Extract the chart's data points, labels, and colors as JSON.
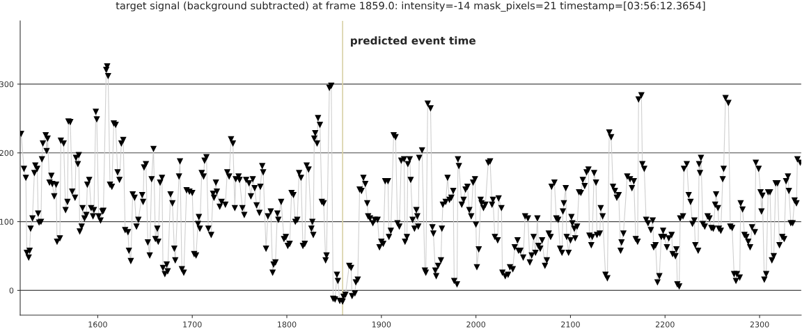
{
  "chart_data": {
    "type": "line",
    "title": "target signal (background subtracted) at frame 1859.0: intensity=-14 mask_pixels=21 timestamp=[03:56:12.3654]",
    "series": [
      {
        "color": "#000000",
        "x": [
          1519,
          1522,
          1524,
          1525,
          1527,
          1528,
          1529,
          1531,
          1533,
          1534,
          1536,
          1537,
          1538,
          1540,
          1541,
          1542,
          1545,
          1546,
          1547,
          1549,
          1551,
          1552,
          1554,
          1556,
          1557,
          1560,
          1561,
          1564,
          1566,
          1568,
          1569,
          1571,
          1573,
          1576,
          1577,
          1579,
          1580,
          1581,
          1583,
          1584,
          1586,
          1588,
          1589,
          1591,
          1593,
          1595,
          1596,
          1598,
          1599,
          1601,
          1603,
          1605,
          1606,
          1609,
          1610,
          1611,
          1613,
          1615,
          1617,
          1619,
          1621,
          1623,
          1625,
          1627,
          1629,
          1632,
          1633,
          1635,
          1637,
          1639,
          1641,
          1643,
          1647,
          1648,
          1649,
          1651,
          1653,
          1655,
          1657,
          1659,
          1661,
          1663,
          1664,
          1666,
          1668,
          1669,
          1671,
          1673,
          1674,
          1677,
          1679,
          1681,
          1682,
          1686,
          1687,
          1689,
          1691,
          1694,
          1697,
          1700,
          1702,
          1704,
          1706,
          1707,
          1708,
          1710,
          1712,
          1713,
          1715,
          1717,
          1720,
          1722,
          1723,
          1725,
          1726,
          1729,
          1731,
          1735,
          1737,
          1739,
          1741,
          1743,
          1745,
          1746,
          1749,
          1750,
          1753,
          1755,
          1757,
          1760,
          1762,
          1764,
          1766,
          1768,
          1771,
          1772,
          1774,
          1775,
          1778,
          1780,
          1783,
          1785,
          1786,
          1788,
          1790,
          1791,
          1794,
          1797,
          1799,
          1801,
          1803,
          1805,
          1807,
          1809,
          1811,
          1813,
          1815,
          1817,
          1819,
          1821,
          1823,
          1826,
          1827,
          1828,
          1829,
          1830,
          1832,
          1833,
          1835,
          1837,
          1839,
          1841,
          1842,
          1845,
          1847,
          1849,
          1851,
          1853,
          1854,
          1856,
          1859,
          1860,
          1862,
          1866,
          1868,
          1869,
          1872,
          1873,
          1875,
          1877,
          1879,
          1881,
          1883,
          1885,
          1886,
          1888,
          1891,
          1893,
          1896,
          1898,
          1900,
          1902,
          1904,
          1907,
          1908,
          1910,
          1913,
          1915,
          1917,
          1919,
          1921,
          1924,
          1925,
          1927,
          1928,
          1930,
          1931,
          1933,
          1935,
          1937,
          1938,
          1939,
          1940,
          1943,
          1946,
          1947,
          1949,
          1952,
          1954,
          1955,
          1957,
          1958,
          1960,
          1963,
          1964,
          1965,
          1968,
          1970,
          1972,
          1974,
          1976,
          1977,
          1980,
          1981,
          1982,
          1985,
          1987,
          1989,
          1991,
          1993,
          1995,
          1997,
          1999,
          2000,
          2001,
          2003,
          2005,
          2006,
          2008,
          2010,
          2013,
          2015,
          2017,
          2018,
          2020,
          2023,
          2024,
          2027,
          2028,
          2031,
          2034,
          2036,
          2039,
          2041,
          2044,
          2045,
          2047,
          2050,
          2052,
          2055,
          2057,
          2059,
          2061,
          2063,
          2065,
          2066,
          2068,
          2070,
          2073,
          2075,
          2077,
          2079,
          2080,
          2083,
          2085,
          2087,
          2089,
          2091,
          2092,
          2093,
          2095,
          2096,
          2098,
          2100,
          2101,
          2102,
          2104,
          2105,
          2107,
          2109,
          2111,
          2113,
          2115,
          2117,
          2119,
          2120,
          2122,
          2123,
          2125,
          2127,
          2128,
          2131,
          2132,
          2134,
          2137,
          2139,
          2141,
          2143,
          2145,
          2147,
          2149,
          2151,
          2153,
          2154,
          2156,
          2160,
          2163,
          2165,
          2167,
          2169,
          2171,
          2172,
          2175,
          2176,
          2178,
          2180,
          2182,
          2185,
          2187,
          2188,
          2190,
          2192,
          2194,
          2196,
          2198,
          2199,
          2202,
          2204,
          2207,
          2208,
          2211,
          2212,
          2213,
          2215,
          2216,
          2219,
          2220,
          2223,
          2225,
          2227,
          2229,
          2231,
          2232,
          2235,
          2236,
          2237,
          2238,
          2240,
          2242,
          2245,
          2247,
          2249,
          2251,
          2253,
          2254,
          2256,
          2257,
          2259,
          2261,
          2262,
          2264,
          2267,
          2269,
          2271,
          2273,
          2275,
          2276,
          2279,
          2280,
          2282,
          2284,
          2286,
          2288,
          2290,
          2292,
          2295,
          2296,
          2299,
          2301,
          2302,
          2303,
          2305,
          2307,
          2309,
          2311,
          2313,
          2315,
          2317,
          2319,
          2321,
          2324,
          2326,
          2328,
          2330,
          2331,
          2333,
          2335,
          2337,
          2339,
          2340,
          2343
        ],
        "values": [
          228,
          177,
          164,
          55,
          48,
          58,
          90,
          105,
          171,
          182,
          177,
          112,
          99,
          100,
          191,
          214,
          226,
          203,
          221,
          157,
          167,
          155,
          137,
          154,
          71,
          76,
          218,
          214,
          117,
          129,
          246,
          245,
          144,
          135,
          193,
          184,
          197,
          86,
          93,
          120,
          105,
          110,
          154,
          161,
          120,
          108,
          117,
          260,
          249,
          108,
          102,
          115,
          116,
          321,
          326,
          312,
          154,
          151,
          243,
          241,
          172,
          161,
          214,
          219,
          88,
          85,
          58,
          43,
          140,
          135,
          93,
          103,
          139,
          129,
          179,
          184,
          70,
          51,
          162,
          206,
          75,
          90,
          71,
          157,
          164,
          33,
          24,
          38,
          28,
          140,
          127,
          61,
          44,
          166,
          188,
          31,
          26,
          146,
          144,
          142,
          53,
          51,
          97,
          107,
          90,
          171,
          166,
          189,
          194,
          90,
          81,
          141,
          135,
          157,
          144,
          122,
          129,
          125,
          172,
          166,
          220,
          214,
          120,
          162,
          166,
          161,
          120,
          110,
          161,
          156,
          137,
          162,
          149,
          124,
          113,
          151,
          181,
          172,
          61,
          108,
          115,
          26,
          38,
          41,
          112,
          103,
          129,
          75,
          78,
          65,
          68,
          142,
          139,
          100,
          103,
          171,
          164,
          65,
          68,
          182,
          176,
          90,
          100,
          81,
          221,
          229,
          214,
          251,
          241,
          129,
          127,
          44,
          51,
          295,
          298,
          -12,
          -13,
          23,
          14,
          -15,
          -16,
          -9,
          -6,
          36,
          33,
          -8,
          -4,
          12,
          16,
          147,
          145,
          164,
          155,
          127,
          108,
          105,
          98,
          103,
          103,
          63,
          71,
          68,
          159,
          159,
          78,
          87,
          226,
          223,
          98,
          93,
          189,
          191,
          71,
          78,
          184,
          191,
          161,
          103,
          90,
          117,
          108,
          93,
          193,
          204,
          29,
          26,
          272,
          265,
          92,
          83,
          29,
          21,
          36,
          44,
          90,
          125,
          129,
          164,
          132,
          135,
          145,
          14,
          9,
          191,
          181,
          125,
          132,
          147,
          151,
          117,
          108,
          157,
          162,
          96,
          34,
          60,
          132,
          127,
          120,
          125,
          186,
          188,
          125,
          132,
          78,
          73,
          134,
          120,
          26,
          21,
          23,
          34,
          31,
          63,
          73,
          58,
          58,
          48,
          108,
          105,
          41,
          51,
          78,
          55,
          105,
          65,
          61,
          73,
          36,
          44,
          83,
          78,
          151,
          157,
          105,
          103,
          61,
          55,
          115,
          127,
          149,
          78,
          55,
          73,
          107,
          98,
          90,
          76,
          93,
          143,
          142,
          161,
          152,
          172,
          176,
          80,
          66,
          78,
          171,
          157,
          81,
          83,
          120,
          108,
          23,
          18,
          230,
          223,
          151,
          145,
          135,
          139,
          58,
          70,
          83,
          166,
          162,
          149,
          159,
          75,
          71,
          278,
          284,
          184,
          177,
          103,
          98,
          88,
          102,
          63,
          66,
          12,
          21,
          78,
          87,
          78,
          63,
          76,
          81,
          53,
          50,
          60,
          9,
          6,
          105,
          108,
          177,
          184,
          139,
          129,
          97,
          102,
          66,
          58,
          184,
          171,
          193,
          97,
          93,
          108,
          105,
          91,
          90,
          125,
          140,
          120,
          90,
          87,
          162,
          177,
          280,
          273,
          93,
          91,
          24,
          14,
          24,
          19,
          127,
          118,
          81,
          78,
          71,
          63,
          92,
          85,
          186,
          177,
          143,
          115,
          138,
          16,
          24,
          143,
          143,
          44,
          50,
          156,
          156,
          66,
          78,
          75,
          159,
          166,
          145,
          98,
          98,
          131,
          127,
          191,
          186
        ]
      }
    ],
    "marker": "triangle",
    "line_style": "solid",
    "xlim": [
      1518,
      2344
    ],
    "xticks": [
      1600,
      1700,
      1800,
      1900,
      2000,
      2100,
      2200,
      2300
    ],
    "ylim": [
      -36,
      392
    ],
    "yticks": [
      0,
      100,
      200,
      300
    ],
    "grid": "y",
    "ref_lines": [
      {
        "axis": "x",
        "value": 1859,
        "label": "predicted event time",
        "color": "#d9d2a8"
      }
    ]
  }
}
